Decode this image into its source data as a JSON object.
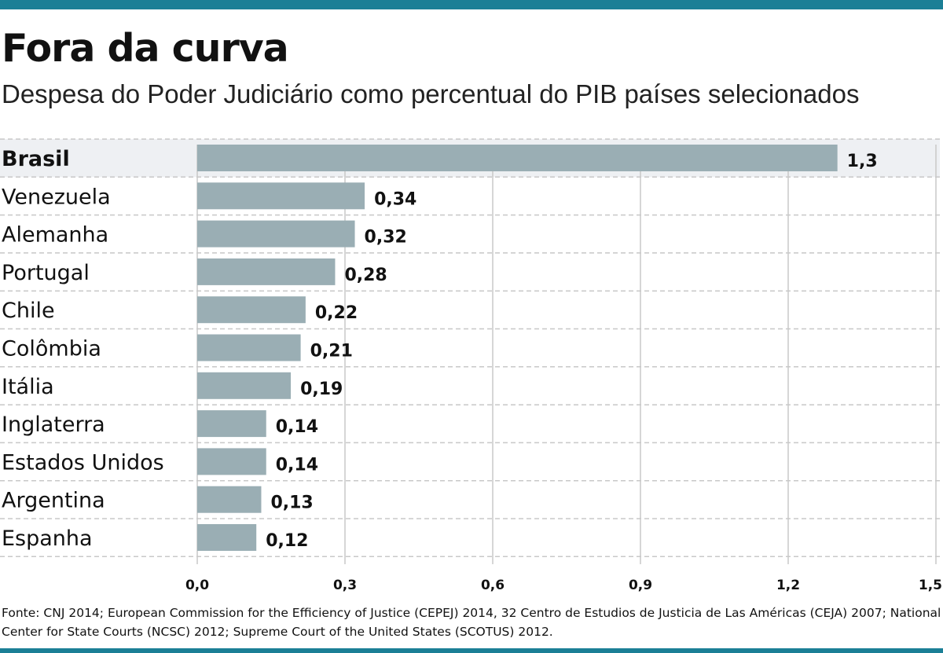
{
  "colors": {
    "accent_bar": "#1b7f96",
    "bar": "#9aaeb4",
    "highlight_row": "#eef0f3",
    "grid": "#c8c8c8",
    "text": "#111111"
  },
  "header": {
    "title": "Fora da curva",
    "subtitle": "Despesa do Poder Judiciário como percentual do PIB países selecionados"
  },
  "chart_data": {
    "type": "bar",
    "orientation": "horizontal",
    "title": "Fora da curva",
    "subtitle": "Despesa do Poder Judiciário como percentual do PIB países selecionados",
    "categories": [
      "Brasil",
      "Venezuela",
      "Alemanha",
      "Portugal",
      "Chile",
      "Colômbia",
      "Itália",
      "Inglaterra",
      "Estados Unidos",
      "Argentina",
      "Espanha"
    ],
    "values": [
      1.3,
      0.34,
      0.32,
      0.28,
      0.22,
      0.21,
      0.19,
      0.14,
      0.14,
      0.13,
      0.12
    ],
    "value_labels": [
      "1,3",
      "0,34",
      "0,32",
      "0,28",
      "0,22",
      "0,21",
      "0,19",
      "0,14",
      "0,14",
      "0,13",
      "0,12"
    ],
    "highlight": "Brasil",
    "xlim": [
      0,
      1.5
    ],
    "xticks": [
      0,
      0.3,
      0.6,
      0.9,
      1.2,
      1.5
    ],
    "xtick_labels": [
      "0,0",
      "0,3",
      "0,6",
      "0,9",
      "1,2",
      "1,5"
    ],
    "xlabel": "",
    "ylabel": "",
    "grid": true
  },
  "footer": {
    "source": "Fonte: CNJ 2014; European Commission for the Efficiency of Justice (CEPEJ) 2014, 32  Centro de Estudios de Justicia de Las Américas (CEJA) 2007; National Center for State Courts (NCSC) 2012; Supreme Court of the United States (SCOTUS) 2012."
  }
}
